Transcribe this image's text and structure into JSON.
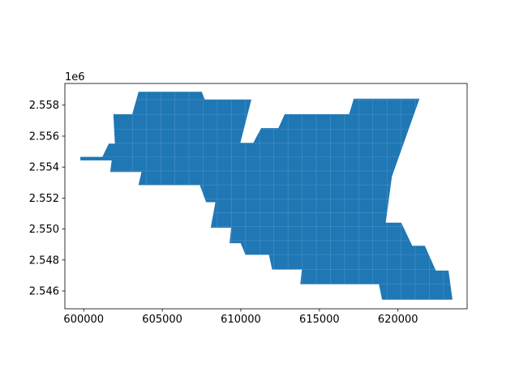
{
  "chart_data": {
    "type": "area",
    "title": "",
    "xlabel": "",
    "ylabel": "",
    "y_offset_label": "1e6",
    "xlim": [
      598800,
      624400
    ],
    "ylim": [
      2544850,
      2559400
    ],
    "x_ticks": [
      600000,
      605000,
      610000,
      615000,
      620000
    ],
    "x_tick_labels": [
      "600000",
      "605000",
      "610000",
      "615000",
      "620000"
    ],
    "y_ticks": [
      2546000,
      2548000,
      2550000,
      2552000,
      2554000,
      2556000,
      2558000
    ],
    "y_tick_labels": [
      "2.546",
      "2.548",
      "2.550",
      "2.552",
      "2.554",
      "2.556",
      "2.558"
    ],
    "grid": false,
    "fill_color": "#1f77b4",
    "cell_edge_color": "#5b9bd5",
    "region_outline": [
      [
        599800,
        2554650
      ],
      [
        601200,
        2554650
      ],
      [
        601600,
        2555500
      ],
      [
        602000,
        2555500
      ],
      [
        601900,
        2557400
      ],
      [
        603100,
        2557400
      ],
      [
        603500,
        2558850
      ],
      [
        607500,
        2558850
      ],
      [
        607700,
        2558350
      ],
      [
        610650,
        2558350
      ],
      [
        609950,
        2555550
      ],
      [
        610800,
        2555550
      ],
      [
        611300,
        2556500
      ],
      [
        612400,
        2556500
      ],
      [
        612800,
        2557400
      ],
      [
        616900,
        2557400
      ],
      [
        617200,
        2558400
      ],
      [
        621350,
        2558400
      ],
      [
        619600,
        2553400
      ],
      [
        619200,
        2550400
      ],
      [
        620200,
        2550400
      ],
      [
        620900,
        2548900
      ],
      [
        621700,
        2548900
      ],
      [
        622400,
        2547300
      ],
      [
        623200,
        2547300
      ],
      [
        623450,
        2545450
      ],
      [
        619000,
        2545450
      ],
      [
        618800,
        2546450
      ],
      [
        613800,
        2546450
      ],
      [
        613900,
        2547400
      ],
      [
        612000,
        2547400
      ],
      [
        611800,
        2548350
      ],
      [
        610300,
        2548350
      ],
      [
        610000,
        2549100
      ],
      [
        609300,
        2549100
      ],
      [
        609400,
        2550100
      ],
      [
        608100,
        2550100
      ],
      [
        608400,
        2551750
      ],
      [
        607800,
        2551750
      ],
      [
        607400,
        2552850
      ],
      [
        603500,
        2552850
      ],
      [
        603700,
        2553700
      ],
      [
        601700,
        2553700
      ],
      [
        601800,
        2554450
      ],
      [
        599800,
        2554450
      ]
    ],
    "cell_grid_x": [
      603100,
      604000,
      604900,
      605800,
      606700,
      607600,
      608500,
      609400,
      610300,
      611200,
      612100,
      613000,
      613900,
      614800,
      615700,
      616600,
      617500,
      618400,
      619300,
      620200,
      621100,
      622000,
      622900
    ],
    "cell_grid_y": [
      2546450,
      2547400,
      2548350,
      2549250,
      2550150,
      2551050,
      2551950,
      2552850,
      2553750,
      2554650,
      2555550,
      2556450,
      2557400,
      2558350
    ]
  }
}
